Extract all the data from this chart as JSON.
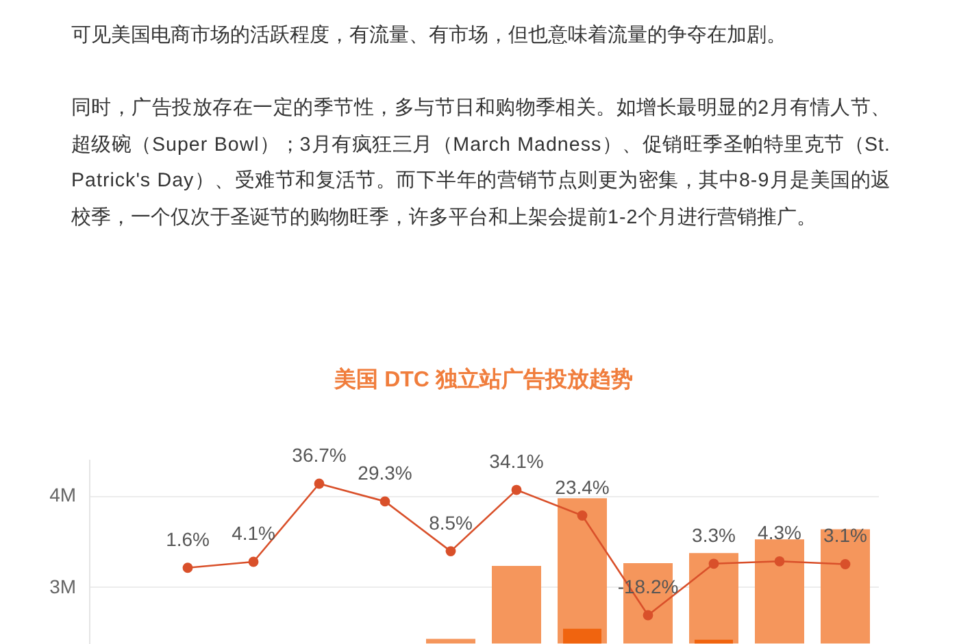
{
  "chart_data": {
    "type": "bar",
    "title": "美国 DTC 独立站广告投放趋势",
    "annotations": [
      "可见美国电商市场的活跃程度，有流量、有市场，但也意味着流量的争夺在加剧。",
      "同时，广告投放存在一定的季节性，多与节日和购物季相关。如增长最明显的2月有情人节、超级碗（Super Bowl）；3月有疯狂三月（March Madness）、促销旺季圣帕特里克节（St. Patrick's Day）、受难节和复活节。而下半年的营销节点则更为密集，其中8-9月是美国的返校季，一个仅次于圣诞节的购物旺季，许多平台和上架会提前1-2个月进行营销推广。"
    ],
    "categories": [
      null,
      null,
      null,
      null,
      null,
      null,
      null,
      null,
      null,
      null,
      null,
      null
    ],
    "series": [
      {
        "color": "#f5965c",
        "values": [
          null,
          null,
          null,
          null,
          null,
          2430000,
          3230000,
          3970000,
          3260000,
          3370000,
          3520000,
          3630000
        ]
      },
      {
        "color": "#f0640f",
        "values": [
          null,
          null,
          null,
          null,
          null,
          null,
          null,
          2540000,
          null,
          2420000,
          null,
          null
        ]
      },
      {
        "type": "line",
        "axis": "y2",
        "color": "#d9502a",
        "values": [
          null,
          1.6,
          4.1,
          36.7,
          29.3,
          8.5,
          34.1,
          23.4,
          -18.2,
          3.3,
          4.3,
          3.1
        ],
        "value_labels": [
          null,
          "1.6%",
          "4.1%",
          "36.7%",
          "29.3%",
          "8.5%",
          "34.1%",
          "23.4%",
          "-18.2%",
          "3.3%",
          "4.3%",
          "3.1%"
        ]
      }
    ],
    "ylim": [
      2380000,
      4400000
    ],
    "yticks": [
      {
        "value": 3000000,
        "label": "3M"
      },
      {
        "value": 4000000,
        "label": "4M"
      }
    ],
    "grid": "y",
    "tick_labels": "y",
    "marker": "circle"
  }
}
